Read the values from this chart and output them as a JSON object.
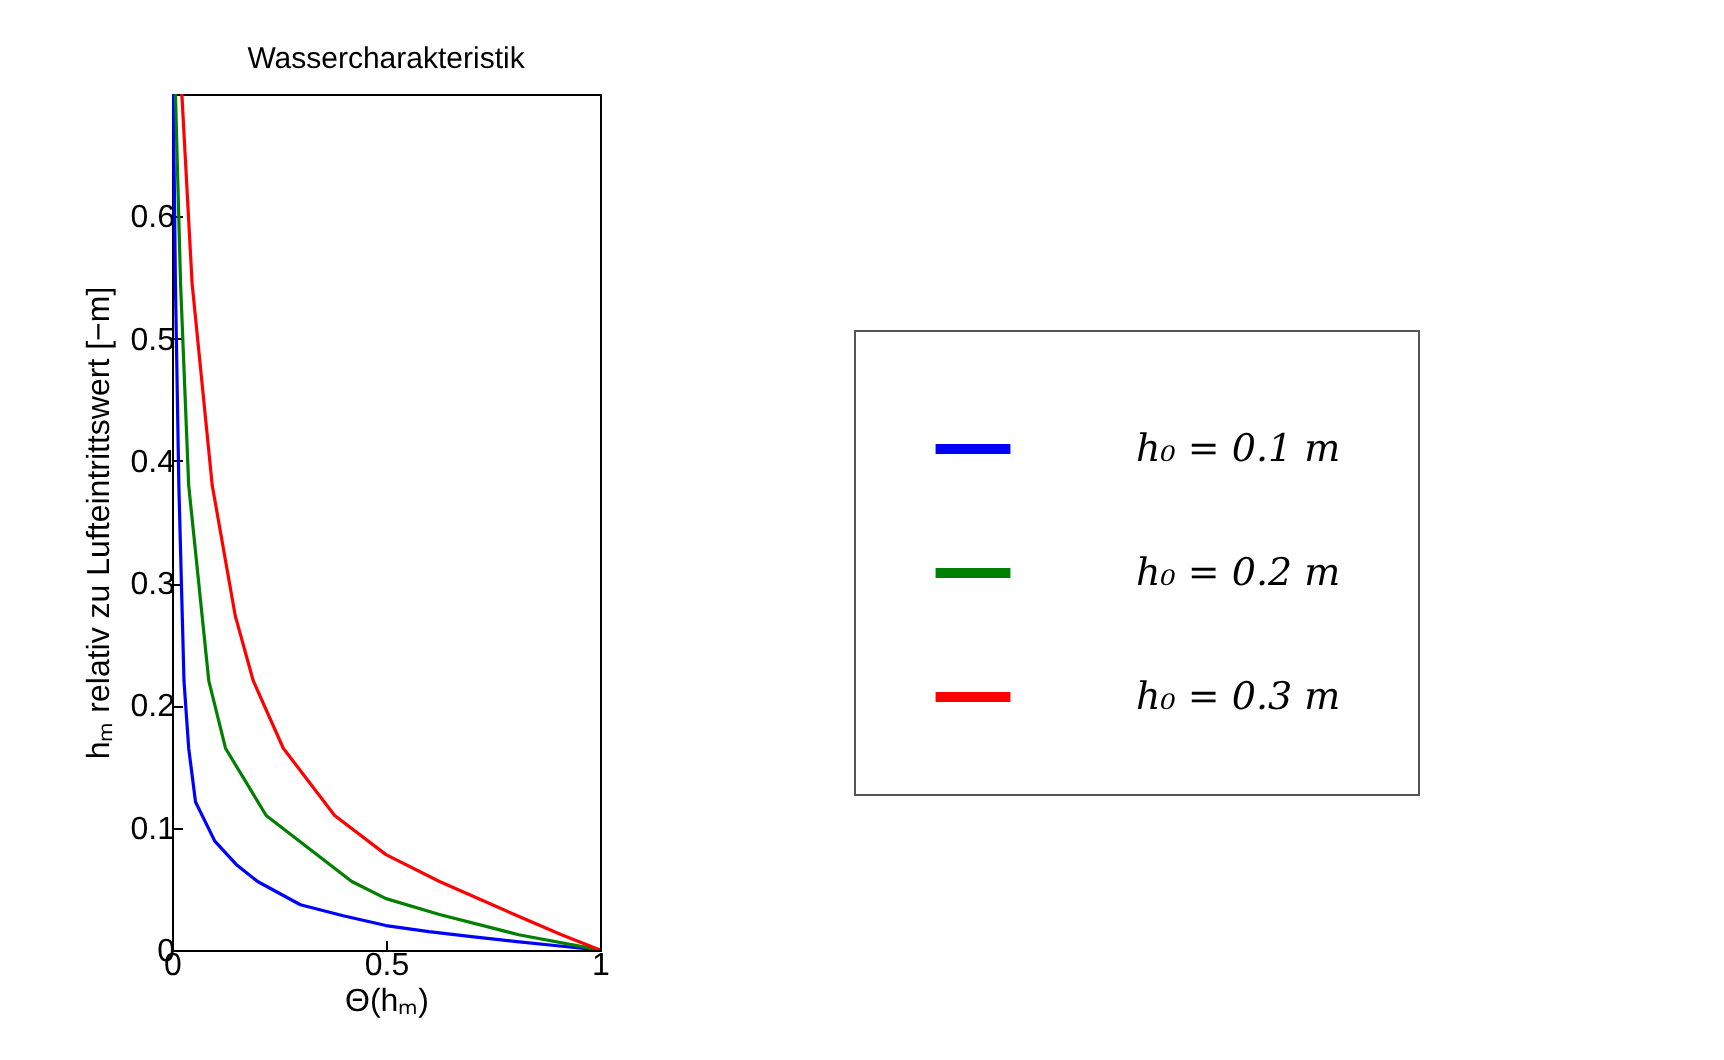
{
  "chart_data": {
    "type": "line",
    "title": "Wassercharakteristik",
    "xlabel": "Θ(hₘ)",
    "ylabel": "hₘ relativ zu Lufteintrittswert [−m]",
    "xlim": [
      0,
      1
    ],
    "ylim": [
      0,
      0.7
    ],
    "xticks": [
      0,
      0.5,
      1
    ],
    "yticks": [
      0,
      0.1,
      0.2,
      0.3,
      0.4,
      0.5,
      0.6
    ],
    "legend": "right",
    "grid": false,
    "line_style": "solid",
    "marker": "none",
    "series": [
      {
        "name": "h₀ = 0.1 m",
        "color": "#0000ff",
        "x": [
          0.003,
          0.008,
          0.016,
          0.028,
          0.039,
          0.055,
          0.1,
          0.15,
          0.2,
          0.3,
          0.4,
          0.5,
          0.6,
          0.7,
          0.8,
          0.9,
          1
        ],
        "values": [
          0.7,
          0.545,
          0.38,
          0.22,
          0.165,
          0.121,
          0.089,
          0.07,
          0.056,
          0.037,
          0.028,
          0.02,
          0.015,
          0.011,
          0.007,
          0.0035,
          0
        ]
      },
      {
        "name": "h₀ = 0.2 m",
        "color": "#008000",
        "x": [
          0.008,
          0.02,
          0.039,
          0.086,
          0.125,
          0.22,
          0.42,
          0.5,
          0.625,
          0.81,
          1
        ],
        "values": [
          0.7,
          0.545,
          0.38,
          0.22,
          0.165,
          0.11,
          0.056,
          0.042,
          0.029,
          0.0125,
          0
        ]
      },
      {
        "name": "h₀ = 0.3 m",
        "color": "#ff0000",
        "x": [
          0.023,
          0.047,
          0.094,
          0.148,
          0.19,
          0.26,
          0.38,
          0.5,
          0.625,
          0.8,
          0.91,
          1
        ],
        "values": [
          0.7,
          0.545,
          0.38,
          0.273,
          0.22,
          0.165,
          0.11,
          0.078,
          0.056,
          0.029,
          0.0125,
          0
        ]
      }
    ]
  }
}
